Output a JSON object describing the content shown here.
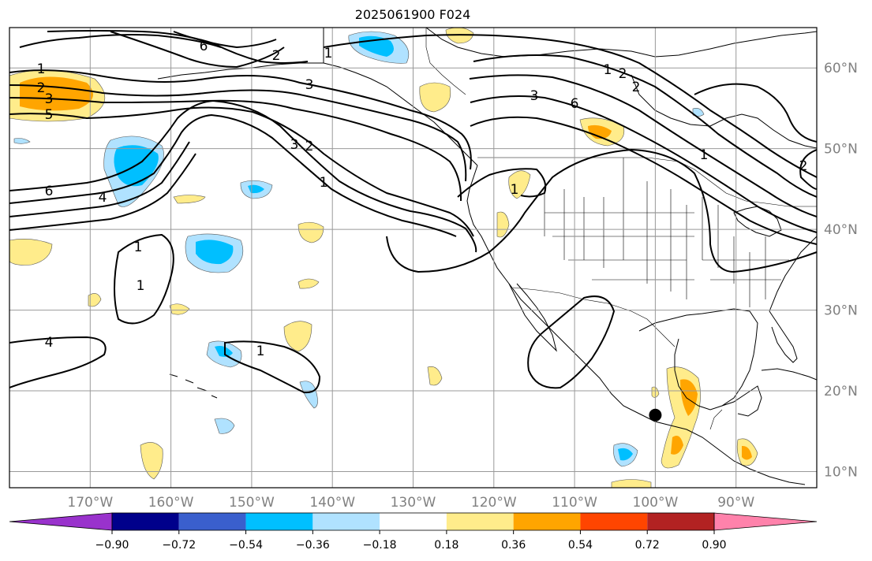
{
  "title": "2025061900 F024",
  "map": {
    "lon_range": [
      -180,
      -80
    ],
    "lat_range": [
      8,
      65
    ],
    "lon_ticks": [
      "170°W",
      "160°W",
      "150°W",
      "140°W",
      "130°W",
      "120°W",
      "110°W",
      "100°W",
      "90°W"
    ],
    "lat_ticks": [
      "60°N",
      "50°N",
      "40°N",
      "30°N",
      "20°N",
      "10°N"
    ],
    "gridlines": true,
    "marker": {
      "lon": -100,
      "lat": 17,
      "color": "#000000"
    }
  },
  "contour_labels": [
    "1",
    "2",
    "3",
    "5",
    "6",
    "4",
    "6",
    "2",
    "1",
    "3",
    "1",
    "1",
    "3",
    "2",
    "1",
    "1",
    "4",
    "3",
    "6",
    "1",
    "2",
    "1",
    "1",
    "2",
    "2"
  ],
  "colorbar": {
    "ticks": [
      "−0.90",
      "−0.72",
      "−0.54",
      "−0.36",
      "−0.18",
      "0.18",
      "0.36",
      "0.54",
      "0.72",
      "0.90"
    ],
    "colors": [
      "#9932cc",
      "#00008b",
      "#3a5fcd",
      "#00bfff",
      "#b0e2ff",
      "#ffffff",
      "#ffec8b",
      "#ffa500",
      "#ff4500",
      "#b22222",
      "#ff82ab"
    ],
    "extend": "both"
  }
}
